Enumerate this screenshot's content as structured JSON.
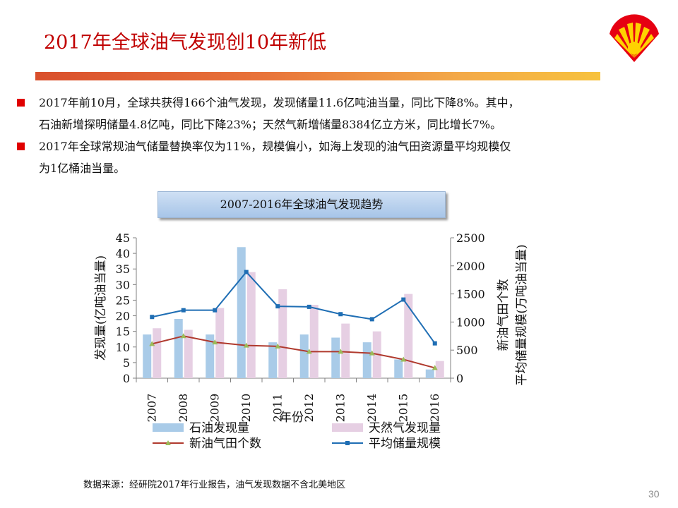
{
  "slide": {
    "title": "2017年全球油气发现创10年新低",
    "bullets": [
      {
        "lines": [
          "2017年前10月，全球共获得166个油气发现，发现储量11.6亿吨油当量，同比下降8%。其中，",
          "石油新增探明储量4.8亿吨，同比下降23%；天然气新增储量8384亿立方米，同比增长7%。"
        ]
      },
      {
        "lines": [
          "2017年全球常规油气储量替换率仅为11%，规模偏小，如海上发现的油气田资源量平均规模仅",
          "为1亿桶油当量。"
        ]
      }
    ],
    "chart_box_title": "2007-2016年全球油气发现趋势",
    "source": "数据来源：经研院2017年行业报告，油气发现数据不含北美地区",
    "page_number": "30",
    "colors": {
      "title": "#c00000",
      "bullet": "#e00000",
      "oil": "#a9cbe8",
      "gas": "#e6cfe3",
      "fields_line": "#b03a2e",
      "fields_marker": "#9bbb59",
      "avg_line": "#1f6eb4"
    }
  },
  "chart_data": {
    "type": "bar",
    "categories": [
      "2007",
      "2008",
      "2009",
      "2010",
      "2011",
      "2012",
      "2013",
      "2014",
      "2015",
      "2016"
    ],
    "xlabel": "年份",
    "ylabel": "发现量(亿吨油当量)",
    "y2label_lines": [
      "新油气田个数",
      "平均储量规模(万吨油当量)"
    ],
    "ylim": [
      0,
      45
    ],
    "y2lim": [
      0,
      2500
    ],
    "yticks": [
      0,
      5,
      10,
      15,
      20,
      25,
      30,
      35,
      40,
      45
    ],
    "y2ticks": [
      0,
      500,
      1000,
      1500,
      2000,
      2500
    ],
    "series": [
      {
        "name": "石油发现量",
        "kind": "bar",
        "axis": "left",
        "values": [
          14,
          19,
          14,
          42,
          11.5,
          14,
          13,
          11.5,
          6,
          2.8
        ]
      },
      {
        "name": "天然气发现量",
        "kind": "bar",
        "axis": "left",
        "values": [
          16,
          15.5,
          22.5,
          34,
          28.5,
          23.5,
          17.5,
          15,
          27,
          5.5
        ]
      },
      {
        "name": "新油气田个数",
        "kind": "line",
        "axis": "left",
        "values": [
          11,
          13.5,
          11.5,
          10.5,
          10.2,
          8.5,
          8.5,
          8,
          6,
          3.3
        ]
      },
      {
        "name": "平均储量规模",
        "kind": "line",
        "axis": "right",
        "values": [
          1090,
          1210,
          1210,
          1890,
          1280,
          1270,
          1140,
          1050,
          1400,
          620
        ]
      }
    ],
    "legend": [
      "石油发现量",
      "天然气发现量",
      "新油气田个数",
      "平均储量规模"
    ]
  }
}
